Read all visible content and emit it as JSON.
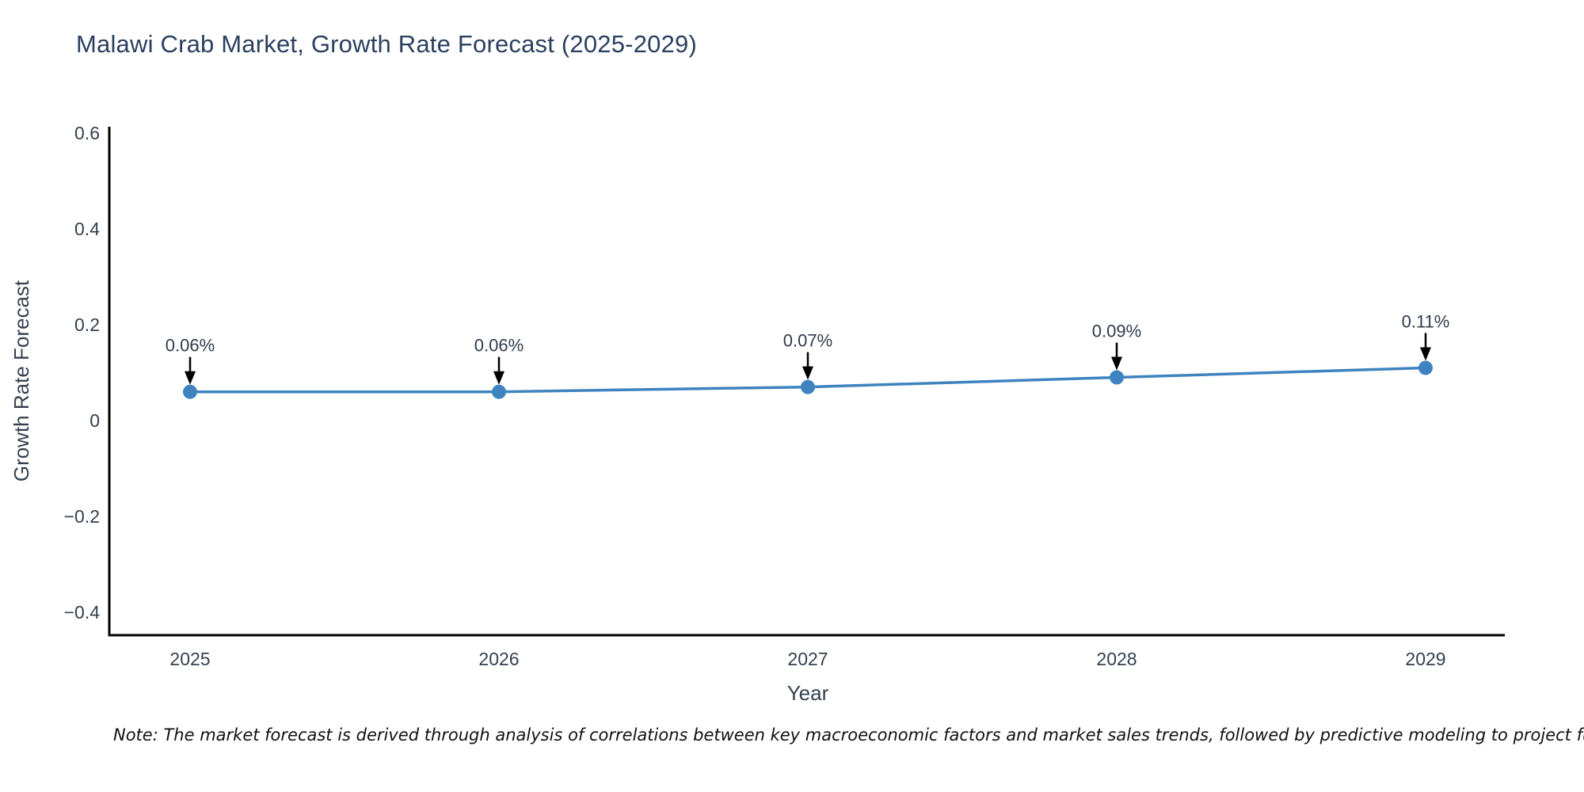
{
  "title": "Malawi Crab Market, Growth Rate Forecast (2025-2029)",
  "chart_data": {
    "type": "line",
    "title": "Malawi Crab Market, Growth Rate Forecast (2025-2029)",
    "x": [
      2025,
      2026,
      2027,
      2028,
      2029
    ],
    "series": [
      {
        "name": "Growth Rate Forecast",
        "values": [
          0.06,
          0.06,
          0.07,
          0.09,
          0.11
        ]
      }
    ],
    "point_labels": [
      "0.06%",
      "0.06%",
      "0.07%",
      "0.09%",
      "0.11%"
    ],
    "xlabel": "Year",
    "ylabel": "Growth Rate Forecast",
    "x_tick_labels": [
      "2025",
      "2026",
      "2027",
      "2028",
      "2029"
    ],
    "y_ticks": [
      0.6,
      0.4,
      0.2,
      0,
      -0.2,
      -0.4
    ],
    "ylim": [
      -0.45,
      0.62
    ],
    "grid": false,
    "legend_visible": false,
    "annotation_arrows": true
  },
  "note": "Note: The market forecast is derived through analysis of correlations between key macroeconomic factors and market sales trends, followed by predictive modeling to project future sa",
  "colors": {
    "line": "#3e83c0",
    "marker": "#3e83c0",
    "axis": "#000000",
    "arrow": "#000000",
    "title_text": "#2a3f5f",
    "tick_text": "#33404f",
    "annotation_text": "#2f3b4c",
    "background": "#ffffff"
  }
}
